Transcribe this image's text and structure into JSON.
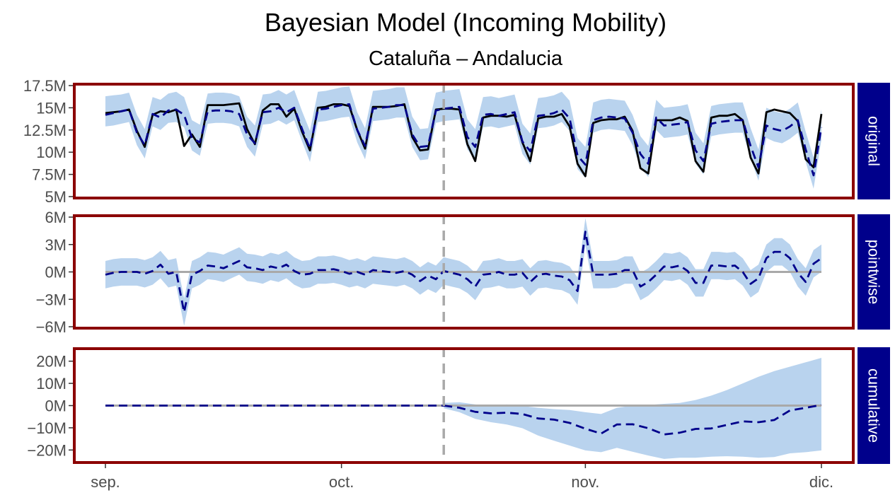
{
  "title": "Bayesian Model (Incoming Mobility)",
  "subtitle": "Cataluña – Andalucia",
  "colors": {
    "frame": "#8b0000",
    "strip": "#00008b",
    "band": "#b9d3ee",
    "actual": "#000000",
    "predicted": "#00008b",
    "zero_line": "#a9a9a9",
    "intervention_line": "#a9a9a9"
  },
  "chart_data": {
    "type": "line",
    "x_type": "date",
    "x_range": [
      "2023-09-01",
      "2023-11-30"
    ],
    "x_ticks": [
      {
        "date": "2023-09-01",
        "label": "sep."
      },
      {
        "date": "2023-10-01",
        "label": "oct."
      },
      {
        "date": "2023-11-01",
        "label": "nov."
      },
      {
        "date": "2023-12-01",
        "label": "dic."
      }
    ],
    "intervention_date": "2023-10-14",
    "legend": "none",
    "panels": [
      {
        "name": "original",
        "ylim": [
          5000000,
          17500000
        ],
        "y_ticks": [
          {
            "value": 5000000,
            "label": "5M"
          },
          {
            "value": 7500000,
            "label": "7.5M"
          },
          {
            "value": 10000000,
            "label": "10M"
          },
          {
            "value": 12500000,
            "label": "12.5M"
          },
          {
            "value": 15000000,
            "label": "15M"
          },
          {
            "value": 17500000,
            "label": "17.5M"
          }
        ],
        "actual": [
          14.4,
          14.5,
          14.6,
          14.8,
          12.4,
          10.6,
          14.2,
          14.6,
          14.5,
          14.8,
          10.7,
          12.0,
          10.6,
          15.3,
          15.3,
          15.3,
          15.4,
          15.5,
          12.6,
          10.9,
          14.7,
          15.4,
          15.4,
          14.0,
          14.9,
          12.3,
          10.2,
          15.0,
          15.1,
          15.4,
          15.4,
          15.2,
          12.5,
          10.4,
          15.1,
          15.1,
          15.1,
          15.2,
          15.4,
          11.7,
          10.2,
          10.3,
          14.8,
          14.9,
          14.9,
          14.8,
          10.9,
          9.0,
          13.9,
          14.1,
          14.1,
          14.0,
          14.2,
          11.1,
          9.0,
          13.8,
          14.0,
          14.0,
          14.3,
          12.9,
          8.7,
          7.3,
          13.3,
          13.6,
          13.7,
          13.7,
          14.0,
          12.4,
          8.2,
          7.6,
          13.6,
          13.6,
          13.6,
          13.9,
          13.5,
          9.0,
          7.8,
          13.9,
          14.1,
          14.1,
          14.3,
          13.6,
          9.4,
          7.6,
          14.5,
          14.8,
          14.6,
          14.4,
          13.5,
          9.2,
          8.3,
          14.3
        ],
        "predicted": [
          14.2,
          14.4,
          14.6,
          14.8,
          12.2,
          10.8,
          14.3,
          13.9,
          14.7,
          14.8,
          14.2,
          11.6,
          11.1,
          14.6,
          14.7,
          14.7,
          14.6,
          14.3,
          12.0,
          11.0,
          14.5,
          14.6,
          15.0,
          14.5,
          15.0,
          12.6,
          10.4,
          14.8,
          14.9,
          15.1,
          15.3,
          15.4,
          12.5,
          10.7,
          14.9,
          15.0,
          15.1,
          15.3,
          15.3,
          12.0,
          10.6,
          10.7,
          14.7,
          14.9,
          15.0,
          15.1,
          11.7,
          10.6,
          14.2,
          14.3,
          14.1,
          14.3,
          14.5,
          11.2,
          10.1,
          14.1,
          14.2,
          14.4,
          14.8,
          13.8,
          9.6,
          8.6,
          13.6,
          13.9,
          14.0,
          13.9,
          13.8,
          12.2,
          9.8,
          8.7,
          13.9,
          13.0,
          13.1,
          13.2,
          13.4,
          10.2,
          9.0,
          13.2,
          13.4,
          13.5,
          13.6,
          13.6,
          10.7,
          8.3,
          13.0,
          12.6,
          12.4,
          12.9,
          13.6,
          10.3,
          7.4,
          12.8
        ],
        "band_upper": [
          16.3,
          16.4,
          16.5,
          16.7,
          14.2,
          12.6,
          16.2,
          15.9,
          16.6,
          16.8,
          16.2,
          13.6,
          13.1,
          16.6,
          16.7,
          16.7,
          16.6,
          16.3,
          14.0,
          13.0,
          16.5,
          16.6,
          17.0,
          16.5,
          17.0,
          14.6,
          12.4,
          16.8,
          16.9,
          17.1,
          17.3,
          17.4,
          14.5,
          12.7,
          16.9,
          17.0,
          17.1,
          17.3,
          17.3,
          14.0,
          12.6,
          12.7,
          16.7,
          16.9,
          17.0,
          17.1,
          13.7,
          12.6,
          16.2,
          16.3,
          16.1,
          16.3,
          16.5,
          13.2,
          12.1,
          16.1,
          16.2,
          16.4,
          16.8,
          15.8,
          11.6,
          10.6,
          15.6,
          15.9,
          16.0,
          15.9,
          15.8,
          14.2,
          11.8,
          10.7,
          15.9,
          15.0,
          15.1,
          15.2,
          15.4,
          12.2,
          11.0,
          15.2,
          15.4,
          15.5,
          15.6,
          15.6,
          12.7,
          10.3,
          15.0,
          14.6,
          14.4,
          14.9,
          15.6,
          12.3,
          9.4,
          14.8
        ],
        "band_lower": [
          12.9,
          13.0,
          13.2,
          13.4,
          10.8,
          9.3,
          12.9,
          12.5,
          13.3,
          13.4,
          12.8,
          10.2,
          9.6,
          13.2,
          13.3,
          13.3,
          13.2,
          12.9,
          10.6,
          9.5,
          13.1,
          13.2,
          13.6,
          13.1,
          13.6,
          11.2,
          8.9,
          13.4,
          13.5,
          13.7,
          13.9,
          14.0,
          11.1,
          9.2,
          13.5,
          13.6,
          13.7,
          13.9,
          13.9,
          10.6,
          9.1,
          9.2,
          13.3,
          13.5,
          13.6,
          13.7,
          10.3,
          9.1,
          12.8,
          12.9,
          12.7,
          12.9,
          13.1,
          9.8,
          8.6,
          12.7,
          12.8,
          13.0,
          13.4,
          12.4,
          8.1,
          7.1,
          12.2,
          12.5,
          12.6,
          12.5,
          12.4,
          10.8,
          8.3,
          7.2,
          12.5,
          11.6,
          11.7,
          11.8,
          12.0,
          8.7,
          7.5,
          11.8,
          12.0,
          12.1,
          12.2,
          12.2,
          9.3,
          6.8,
          11.6,
          11.2,
          11.0,
          11.5,
          12.2,
          8.9,
          5.9,
          11.4
        ]
      },
      {
        "name": "pointwise",
        "ylim": [
          -6000000,
          6000000
        ],
        "y_ticks": [
          {
            "value": -6000000,
            "label": "−6M"
          },
          {
            "value": -3000000,
            "label": "−3M"
          },
          {
            "value": 0,
            "label": "0M"
          },
          {
            "value": 3000000,
            "label": "3M"
          },
          {
            "value": 6000000,
            "label": "6M"
          }
        ],
        "zero_line": 0,
        "predicted": [
          -0.3,
          -0.1,
          0.0,
          0.0,
          0.0,
          -0.2,
          0.1,
          0.8,
          -0.2,
          0.0,
          -4.4,
          -0.3,
          0.1,
          0.7,
          0.6,
          0.4,
          0.8,
          1.2,
          0.5,
          0.4,
          0.2,
          0.6,
          0.4,
          0.8,
          0.1,
          -0.3,
          -0.2,
          0.2,
          0.2,
          0.3,
          0.1,
          -0.2,
          0.0,
          -0.3,
          0.2,
          0.1,
          0.0,
          -0.1,
          0.1,
          -0.3,
          -1.0,
          -0.4,
          -0.8,
          0.1,
          -0.1,
          -0.3,
          -0.8,
          -1.6,
          -0.3,
          -0.2,
          0.0,
          -0.3,
          -0.3,
          -0.1,
          -1.1,
          -0.3,
          -0.2,
          -0.4,
          -0.5,
          -0.9,
          -2.1,
          4.4,
          -0.3,
          -0.3,
          -0.3,
          -0.2,
          0.2,
          0.2,
          -1.6,
          -1.1,
          -0.3,
          0.6,
          0.5,
          0.7,
          0.1,
          -1.2,
          -1.2,
          0.7,
          0.7,
          0.6,
          0.7,
          0.0,
          -1.3,
          -0.7,
          1.5,
          2.2,
          2.2,
          1.5,
          -0.1,
          -1.1,
          0.9,
          1.5
        ],
        "band_upper": [
          1.2,
          1.4,
          1.5,
          1.5,
          1.5,
          1.3,
          1.6,
          2.3,
          1.3,
          1.5,
          -2.9,
          1.2,
          1.6,
          2.2,
          2.1,
          1.9,
          2.3,
          2.7,
          2.0,
          1.9,
          1.7,
          2.1,
          1.9,
          2.3,
          1.6,
          1.2,
          1.3,
          1.7,
          1.7,
          1.8,
          1.6,
          1.3,
          1.5,
          1.2,
          1.7,
          1.6,
          1.5,
          1.4,
          1.6,
          1.2,
          0.5,
          1.1,
          0.7,
          1.6,
          1.4,
          1.2,
          0.7,
          -0.1,
          1.2,
          1.3,
          1.5,
          1.2,
          1.2,
          1.4,
          0.4,
          1.2,
          1.3,
          1.1,
          1.0,
          0.6,
          -0.6,
          5.9,
          1.2,
          1.2,
          1.2,
          1.3,
          1.7,
          1.7,
          -0.1,
          0.4,
          1.2,
          2.1,
          2.0,
          2.2,
          1.6,
          0.3,
          0.3,
          2.2,
          2.2,
          2.1,
          2.2,
          1.5,
          0.2,
          0.8,
          3.0,
          3.7,
          3.7,
          3.0,
          1.4,
          0.4,
          2.4,
          3.0
        ],
        "band_lower": [
          -1.8,
          -1.6,
          -1.5,
          -1.5,
          -1.5,
          -1.7,
          -1.4,
          -0.7,
          -1.7,
          -1.5,
          -5.9,
          -1.8,
          -1.4,
          -0.8,
          -0.9,
          -1.1,
          -0.7,
          -0.3,
          -1.0,
          -1.1,
          -1.3,
          -0.9,
          -1.1,
          -0.7,
          -1.4,
          -1.8,
          -1.7,
          -1.3,
          -1.3,
          -1.2,
          -1.4,
          -1.7,
          -1.5,
          -1.8,
          -1.3,
          -1.4,
          -1.5,
          -1.6,
          -1.4,
          -1.8,
          -2.5,
          -1.9,
          -2.3,
          -1.4,
          -1.6,
          -1.8,
          -2.3,
          -3.1,
          -1.8,
          -1.7,
          -1.5,
          -1.8,
          -1.8,
          -1.6,
          -2.6,
          -1.8,
          -1.7,
          -1.9,
          -2.0,
          -2.4,
          -3.6,
          2.9,
          -1.8,
          -1.8,
          -1.8,
          -1.7,
          -1.3,
          -1.3,
          -3.1,
          -2.6,
          -1.8,
          -0.9,
          -1.0,
          -0.8,
          -1.4,
          -2.7,
          -2.7,
          -0.8,
          -0.8,
          -0.9,
          -0.8,
          -1.5,
          -2.8,
          -2.2,
          0.0,
          0.7,
          0.7,
          0.0,
          -1.6,
          -2.6,
          -0.6,
          0.0
        ]
      },
      {
        "name": "cumulative",
        "ylim": [
          -25000000,
          25000000
        ],
        "y_ticks": [
          {
            "value": -20000000,
            "label": "−20M"
          },
          {
            "value": -10000000,
            "label": "−10M"
          },
          {
            "value": 0,
            "label": "0M"
          },
          {
            "value": 10000000,
            "label": "10M"
          },
          {
            "value": 20000000,
            "label": "20M"
          }
        ],
        "zero_line": 0,
        "predicted_pre": {
          "x_range": [
            "2023-09-01",
            "2023-10-14"
          ],
          "value": 0
        },
        "predicted_post": [
          0.0,
          -1.0,
          -2.8,
          -3.5,
          -3.2,
          -3.8,
          -5.8,
          -6.3,
          -7.8,
          -10.4,
          -12.6,
          -8.5,
          -8.4,
          -10.2,
          -13.0,
          -12.2,
          -10.5,
          -10.3,
          -8.7,
          -7.1,
          -7.5,
          -6.5,
          -2.2,
          -1.0,
          0.3
        ],
        "band_upper_post": [
          1.2,
          1.5,
          0.5,
          0.0,
          0.5,
          -0.2,
          -1.0,
          -1.6,
          -2.0,
          -3.0,
          -3.8,
          -1.0,
          0.0,
          0.3,
          0.8,
          1.2,
          2.5,
          4.5,
          7.0,
          10.0,
          13.0,
          15.5,
          17.5,
          19.5,
          21.5
        ],
        "band_lower_post": [
          -1.2,
          -3.0,
          -6.0,
          -7.5,
          -8.5,
          -10.2,
          -13.5,
          -15.8,
          -18.0,
          -20.2,
          -21.0,
          -19.0,
          -20.8,
          -22.5,
          -24.0,
          -23.5,
          -23.5,
          -23.0,
          -22.8,
          -23.0,
          -23.5,
          -23.2,
          -21.5,
          -21.0,
          -20.2
        ]
      }
    ]
  }
}
